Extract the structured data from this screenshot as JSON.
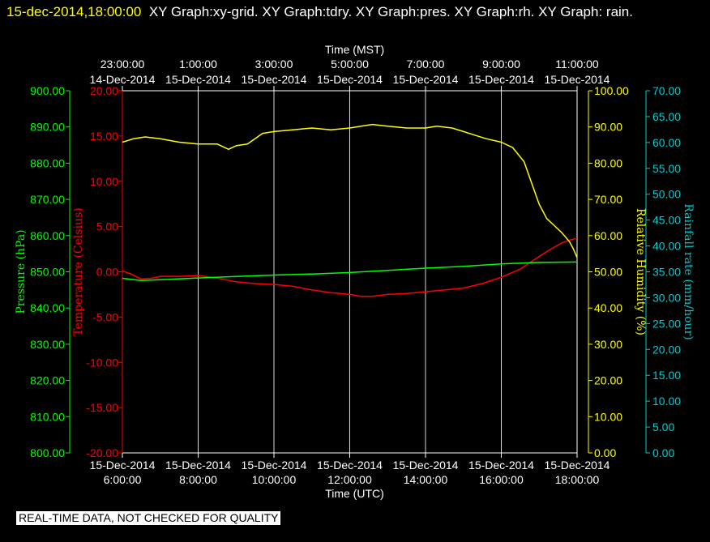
{
  "header": {
    "timestamp": "15-dec-2014,18:00:00",
    "graphs_text": "XY Graph:xy-grid.  XY Graph:tdry.  XY Graph:pres.  XY Graph:rh.  XY Graph: rain."
  },
  "notice": "REAL-TIME DATA, NOT CHECKED FOR QUALITY",
  "colors": {
    "background": "#000000",
    "pressure": "#00ff00",
    "temperature": "#ff0000",
    "humidity": "#ffff00",
    "rain": "#00cccc",
    "grid": "#ffffff",
    "text": "#ffffff"
  },
  "chart_data": {
    "type": "line",
    "x_bottom": {
      "label": "Time (UTC)",
      "ticks": [
        {
          "line1": "15-Dec-2014",
          "line2": "6:00:00"
        },
        {
          "line1": "15-Dec-2014",
          "line2": "8:00:00"
        },
        {
          "line1": "15-Dec-2014",
          "line2": "10:00:00"
        },
        {
          "line1": "15-Dec-2014",
          "line2": "12:00:00"
        },
        {
          "line1": "15-Dec-2014",
          "line2": "14:00:00"
        },
        {
          "line1": "15-Dec-2014",
          "line2": "16:00:00"
        },
        {
          "line1": "15-Dec-2014",
          "line2": "18:00:00"
        }
      ],
      "range_hours": [
        6,
        18
      ],
      "tick_hours": [
        6,
        8,
        10,
        12,
        14,
        16,
        18
      ]
    },
    "x_top": {
      "label": "Time (MST)",
      "ticks": [
        {
          "line1": "23:00:00",
          "line2": "14-Dec-2014"
        },
        {
          "line1": "1:00:00",
          "line2": "15-Dec-2014"
        },
        {
          "line1": "3:00:00",
          "line2": "15-Dec-2014"
        },
        {
          "line1": "5:00:00",
          "line2": "15-Dec-2014"
        },
        {
          "line1": "7:00:00",
          "line2": "15-Dec-2014"
        },
        {
          "line1": "9:00:00",
          "line2": "15-Dec-2014"
        },
        {
          "line1": "11:00:00",
          "line2": "15-Dec-2014"
        }
      ]
    },
    "axes": {
      "pressure": {
        "label": "Pressure (hPa)",
        "range": [
          800,
          900
        ],
        "ticks": [
          "800.00",
          "810.00",
          "820.00",
          "830.00",
          "840.00",
          "850.00",
          "860.00",
          "870.00",
          "880.00",
          "890.00",
          "900.00"
        ]
      },
      "temperature": {
        "label": "Temperature (Celsius)",
        "range": [
          -20,
          20
        ],
        "ticks": [
          "-20.00",
          "-15.00",
          "-10.00",
          "-5.00",
          "0.00",
          "5.00",
          "10.00",
          "15.00",
          "20.00"
        ]
      },
      "humidity": {
        "label": "Relative Humidity (%)",
        "range": [
          0,
          102
        ],
        "ticks": [
          "0.00",
          "10.00",
          "20.00",
          "30.00",
          "40.00",
          "50.00",
          "60.00",
          "70.00",
          "80.00",
          "90.00",
          "100.00"
        ]
      },
      "rain": {
        "label": "Rainfall rate (mm/hour)",
        "range": [
          0,
          70
        ],
        "ticks": [
          "0.00",
          "5.00",
          "10.00",
          "15.00",
          "20.00",
          "25.00",
          "30.00",
          "35.00",
          "40.00",
          "45.00",
          "50.00",
          "55.00",
          "60.00",
          "65.00",
          "70.00"
        ]
      }
    },
    "series": [
      {
        "name": "tdry",
        "axis": "temperature",
        "x": [
          6.0,
          6.2,
          6.5,
          6.8,
          7.0,
          7.5,
          8.0,
          8.5,
          9.0,
          9.5,
          10.0,
          10.5,
          11.0,
          11.5,
          12.0,
          12.3,
          12.6,
          13.0,
          13.5,
          14.0,
          14.5,
          15.0,
          15.5,
          16.0,
          16.5,
          17.0,
          17.3,
          17.6,
          17.8,
          18.0
        ],
        "y": [
          0.1,
          -0.2,
          -0.8,
          -0.7,
          -0.5,
          -0.5,
          -0.4,
          -0.7,
          -1.1,
          -1.3,
          -1.4,
          -1.6,
          -2.0,
          -2.3,
          -2.5,
          -2.7,
          -2.7,
          -2.5,
          -2.4,
          -2.2,
          -2.0,
          -1.8,
          -1.3,
          -0.6,
          0.3,
          1.7,
          2.5,
          3.2,
          3.5,
          3.7
        ]
      },
      {
        "name": "pres",
        "axis": "pressure",
        "x": [
          6.0,
          6.5,
          7.0,
          8.0,
          9.0,
          10.0,
          11.0,
          12.0,
          13.0,
          14.0,
          15.0,
          16.0,
          17.0,
          18.0
        ],
        "y": [
          848.2,
          847.6,
          847.8,
          848.3,
          848.7,
          849.1,
          849.4,
          849.8,
          850.4,
          851.0,
          851.5,
          852.2,
          852.6,
          852.7
        ]
      },
      {
        "name": "rh",
        "axis": "humidity",
        "x": [
          6.0,
          6.3,
          6.6,
          7.0,
          7.5,
          8.0,
          8.5,
          8.8,
          9.0,
          9.3,
          9.7,
          10.0,
          10.5,
          11.0,
          11.5,
          12.0,
          12.3,
          12.6,
          13.0,
          13.5,
          14.0,
          14.3,
          14.7,
          15.0,
          15.3,
          15.6,
          16.0,
          16.3,
          16.6,
          16.8,
          17.0,
          17.2,
          17.4,
          17.6,
          17.8,
          17.9,
          18.0
        ],
        "y": [
          87.5,
          88.5,
          89.0,
          88.5,
          87.5,
          87.0,
          87.0,
          85.5,
          86.5,
          87.0,
          90.0,
          90.5,
          91.0,
          91.5,
          91.0,
          91.5,
          92.0,
          92.5,
          92.0,
          91.5,
          91.5,
          92.0,
          91.5,
          90.5,
          89.5,
          88.5,
          87.5,
          86.0,
          82.0,
          76.0,
          70.0,
          66.0,
          64.0,
          62.0,
          59.5,
          57.5,
          55.0
        ]
      },
      {
        "name": "rain",
        "axis": "rain",
        "x": [],
        "y": []
      }
    ],
    "grid": true
  }
}
